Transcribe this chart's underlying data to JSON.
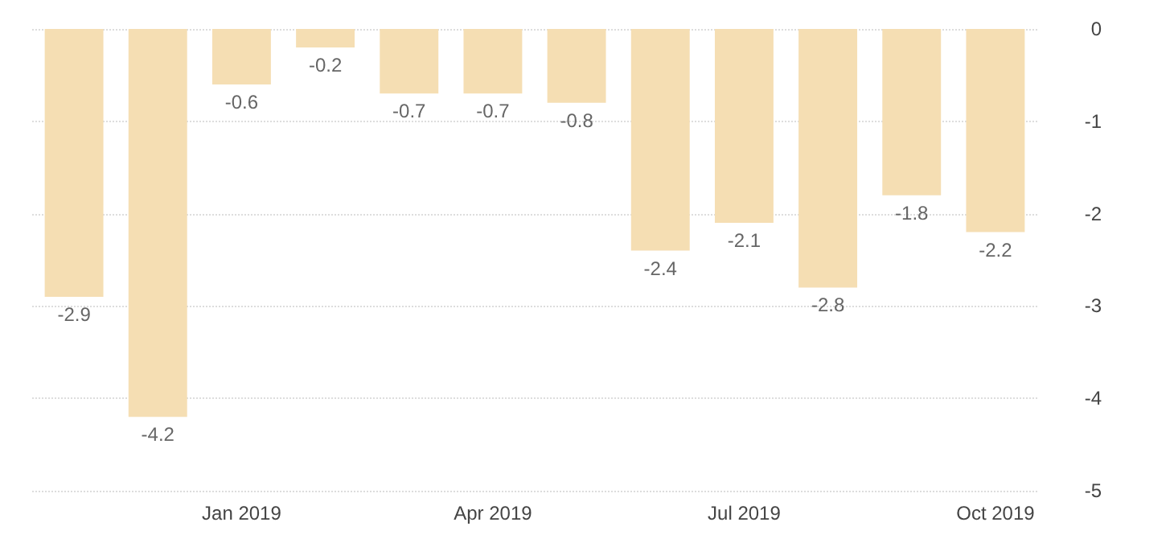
{
  "chart_data": {
    "type": "bar",
    "categories": [
      null,
      null,
      "Jan 2019",
      null,
      null,
      "Apr 2019",
      null,
      null,
      "Jul 2019",
      null,
      null,
      "Oct 2019"
    ],
    "values": [
      -2.9,
      -4.2,
      -0.6,
      -0.2,
      -0.7,
      -0.7,
      -0.8,
      -2.4,
      -2.1,
      -2.8,
      -1.8,
      -2.2
    ],
    "color": "#f5deb3",
    "ylim": [
      -5,
      0
    ],
    "yticks": [
      -5,
      -4,
      -3,
      -2,
      -1,
      0
    ],
    "grid": "y",
    "data_labels": true
  }
}
